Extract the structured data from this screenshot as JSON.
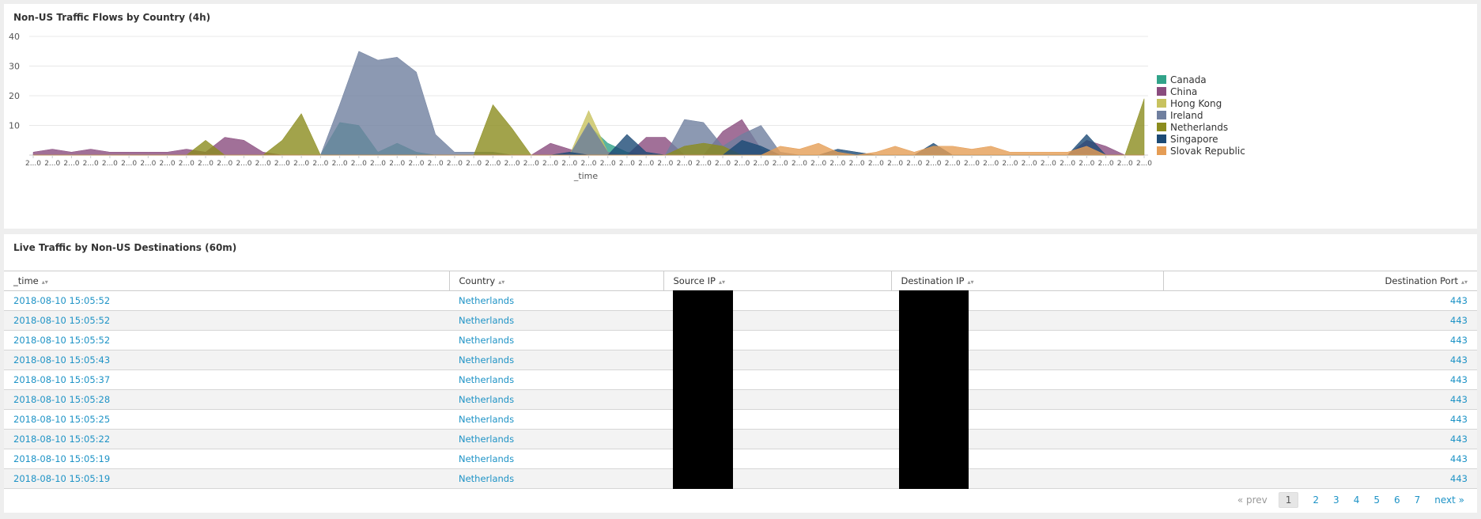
{
  "chart_panel": {
    "title": "Non-US Traffic Flows by Country (4h)"
  },
  "chart_data": {
    "type": "area",
    "xlabel": "_time",
    "ylabel": "",
    "x_tick_label": "2...0",
    "x_tick_count": 59,
    "y_ticks": [
      10,
      20,
      30,
      40
    ],
    "ylim": [
      0,
      40
    ],
    "grid": true,
    "legend_position": "right",
    "series": [
      {
        "name": "Canada",
        "color": "#31a389",
        "values": [
          0,
          0,
          0,
          0,
          0,
          0,
          0,
          0,
          0,
          0,
          0,
          0,
          0,
          0,
          0,
          0,
          11,
          10,
          1,
          4,
          1,
          0,
          0,
          0,
          0,
          0,
          0,
          0,
          0,
          10,
          4,
          1,
          0,
          0,
          0,
          0,
          0,
          0,
          0,
          0,
          0,
          0,
          0,
          0,
          0,
          0,
          0,
          0,
          0,
          0,
          0,
          0,
          0,
          0,
          0,
          0,
          0,
          0,
          0
        ]
      },
      {
        "name": "China",
        "color": "#8a4c7e",
        "values": [
          1,
          2,
          1,
          2,
          1,
          1,
          1,
          1,
          2,
          1,
          6,
          5,
          1,
          0,
          0,
          0,
          0,
          0,
          0,
          0,
          0,
          0,
          0,
          0,
          0,
          0,
          0,
          4,
          2,
          0,
          0,
          0,
          6,
          6,
          0,
          0,
          8,
          12,
          2,
          0,
          0,
          0,
          0,
          0,
          0,
          0,
          0,
          0,
          0,
          0,
          0,
          0,
          0,
          0,
          0,
          5,
          3,
          0,
          0
        ]
      },
      {
        "name": "Hong Kong",
        "color": "#c8c25e",
        "values": [
          0,
          0,
          0,
          0,
          0,
          0,
          0,
          0,
          0,
          0,
          0,
          0,
          0,
          0,
          0,
          0,
          0,
          0,
          0,
          0,
          0,
          0,
          0,
          0,
          0,
          0,
          0,
          0,
          0,
          15,
          1,
          0,
          0,
          0,
          0,
          0,
          0,
          0,
          0,
          0,
          0,
          0,
          0,
          0,
          0,
          0,
          0,
          0,
          0,
          0,
          0,
          0,
          0,
          0,
          0,
          0,
          0,
          0,
          0
        ]
      },
      {
        "name": "Ireland",
        "color": "#6f7f9f",
        "values": [
          0,
          0,
          0,
          0,
          0,
          0,
          0,
          0,
          0,
          0,
          0,
          0,
          0,
          0,
          0,
          0,
          17,
          35,
          32,
          33,
          28,
          7,
          1,
          1,
          1,
          0,
          0,
          0,
          0,
          11,
          1,
          0,
          0,
          0,
          12,
          11,
          3,
          7,
          10,
          1,
          0,
          0,
          0,
          0,
          0,
          0,
          0,
          0,
          0,
          0,
          0,
          0,
          0,
          0,
          0,
          0,
          0,
          0,
          0
        ]
      },
      {
        "name": "Netherlands",
        "color": "#8b8c1e",
        "values": [
          0,
          0,
          0,
          0,
          0,
          0,
          0,
          0,
          0,
          5,
          0,
          0,
          0,
          5,
          14,
          0,
          0,
          0,
          0,
          0,
          0,
          0,
          0,
          0,
          17,
          9,
          0,
          0,
          0,
          0,
          0,
          0,
          0,
          0,
          3,
          4,
          3,
          0,
          0,
          0,
          0,
          0,
          0,
          0,
          0,
          0,
          0,
          0,
          0,
          0,
          0,
          0,
          0,
          0,
          0,
          0,
          0,
          0,
          19
        ]
      },
      {
        "name": "Singapore",
        "color": "#1c4a75",
        "values": [
          0,
          0,
          0,
          0,
          0,
          0,
          0,
          0,
          0,
          0,
          0,
          0,
          0,
          0,
          0,
          0,
          0,
          0,
          0,
          0,
          0,
          0,
          0,
          0,
          0,
          0,
          0,
          0,
          1,
          0,
          0,
          7,
          1,
          0,
          0,
          0,
          0,
          5,
          3,
          0,
          0,
          0,
          2,
          1,
          0,
          0,
          0,
          4,
          0,
          0,
          0,
          0,
          0,
          0,
          0,
          7,
          0,
          0,
          0
        ]
      },
      {
        "name": "Slovak Republic",
        "color": "#e59d55",
        "values": [
          0,
          0,
          0,
          0,
          0,
          0,
          0,
          0,
          0,
          0,
          0,
          0,
          0,
          0,
          0,
          0,
          0,
          0,
          0,
          0,
          0,
          0,
          0,
          0,
          0,
          0,
          0,
          0,
          0,
          0,
          0,
          0,
          0,
          0,
          0,
          0,
          0,
          0,
          0,
          3,
          2,
          4,
          1,
          0,
          1,
          3,
          1,
          3,
          3,
          2,
          3,
          1,
          1,
          1,
          1,
          3,
          0,
          0,
          0
        ]
      }
    ]
  },
  "table_panel": {
    "title": "Live Traffic by Non-US Destinations (60m)",
    "columns": [
      "_time",
      "Country",
      "Source IP",
      "Destination IP",
      "Destination Port"
    ],
    "rows": [
      {
        "time": "2018-08-10 15:05:52",
        "country": "Netherlands",
        "port": "443"
      },
      {
        "time": "2018-08-10 15:05:52",
        "country": "Netherlands",
        "port": "443"
      },
      {
        "time": "2018-08-10 15:05:52",
        "country": "Netherlands",
        "port": "443"
      },
      {
        "time": "2018-08-10 15:05:43",
        "country": "Netherlands",
        "port": "443"
      },
      {
        "time": "2018-08-10 15:05:37",
        "country": "Netherlands",
        "port": "443"
      },
      {
        "time": "2018-08-10 15:05:28",
        "country": "Netherlands",
        "port": "443"
      },
      {
        "time": "2018-08-10 15:05:25",
        "country": "Netherlands",
        "port": "443"
      },
      {
        "time": "2018-08-10 15:05:22",
        "country": "Netherlands",
        "port": "443"
      },
      {
        "time": "2018-08-10 15:05:19",
        "country": "Netherlands",
        "port": "443"
      },
      {
        "time": "2018-08-10 15:05:19",
        "country": "Netherlands",
        "port": "443"
      }
    ]
  },
  "pagination": {
    "prev": "« prev",
    "pages": [
      "1",
      "2",
      "3",
      "4",
      "5",
      "6",
      "7"
    ],
    "current": "1",
    "next": "next »"
  }
}
